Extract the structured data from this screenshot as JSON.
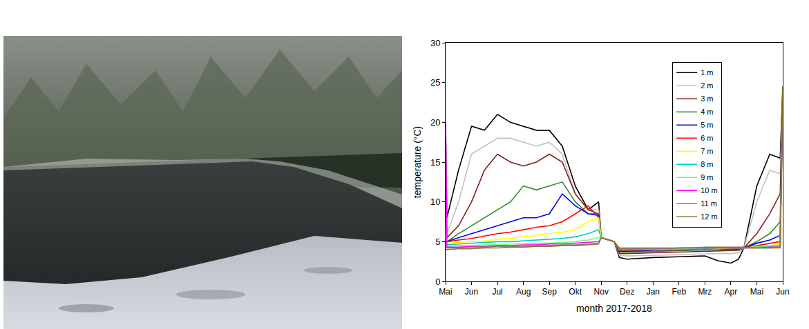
{
  "chart_data": {
    "type": "line",
    "x_label": "month 2017-2018",
    "y_label": "temperature (°C)",
    "x": [
      0,
      0.05,
      0.5,
      1,
      1.5,
      2,
      2.5,
      3,
      3.5,
      4,
      4.5,
      5,
      5.5,
      5.9,
      6,
      6.5,
      6.7,
      7,
      8,
      9,
      10,
      10.5,
      11,
      11.3,
      11.5,
      12,
      12.5,
      12.9,
      13
    ],
    "xlim": [
      0,
      13
    ],
    "xticks": [
      {
        "value": 0,
        "label": "Mai"
      },
      {
        "value": 1,
        "label": "Jun"
      },
      {
        "value": 2,
        "label": "Jul"
      },
      {
        "value": 3,
        "label": "Aug"
      },
      {
        "value": 4,
        "label": "Sep"
      },
      {
        "value": 5,
        "label": "Okt"
      },
      {
        "value": 6,
        "label": "Nov"
      },
      {
        "value": 7,
        "label": "Dez"
      },
      {
        "value": 8,
        "label": "Jan"
      },
      {
        "value": 9,
        "label": "Feb"
      },
      {
        "value": 10,
        "label": "Mrz"
      },
      {
        "value": 11,
        "label": "Apr"
      },
      {
        "value": 12,
        "label": "Mai"
      },
      {
        "value": 13,
        "label": "Jun"
      }
    ],
    "ylim": [
      0,
      30
    ],
    "yticks": [
      0,
      5,
      10,
      15,
      20,
      25,
      30
    ],
    "grid": false,
    "legend": "top right",
    "series": [
      {
        "name": "1 m",
        "color": "#000000",
        "values": [
          20,
          8,
          14,
          19.5,
          19,
          21,
          20,
          19.5,
          19,
          19,
          17,
          12,
          9,
          10,
          5.5,
          5,
          3,
          2.8,
          3.0,
          3.1,
          3.2,
          2.6,
          2.3,
          2.8,
          4.2,
          12,
          16,
          15.5,
          24.5
        ]
      },
      {
        "name": "2 m",
        "color": "#c0c0c0",
        "values": [
          19,
          6,
          10,
          16,
          17,
          18,
          18,
          17.5,
          17,
          17.5,
          16,
          11,
          9,
          9,
          5.5,
          5,
          3.3,
          3.2,
          3.3,
          3.4,
          3.5,
          3.5,
          3.5,
          3.6,
          4.2,
          10,
          14,
          13.5,
          24
        ]
      },
      {
        "name": "3 m",
        "color": "#8b1a1a",
        "values": [
          15,
          5.5,
          7,
          10,
          14,
          16,
          15,
          14.5,
          15,
          16,
          15,
          11,
          9,
          8.5,
          5.5,
          5,
          3.5,
          3.5,
          3.6,
          3.7,
          3.8,
          3.8,
          3.9,
          3.9,
          4.2,
          6,
          8.5,
          11,
          24
        ]
      },
      {
        "name": "4 m",
        "color": "#2e8b2e",
        "values": [
          5,
          5,
          6,
          7,
          8,
          9,
          10,
          12,
          11.5,
          12,
          12.5,
          10,
          8.5,
          8.5,
          5.5,
          5,
          3.7,
          3.7,
          3.8,
          3.9,
          4.0,
          4.0,
          4.0,
          4.0,
          4.2,
          5,
          6,
          7.5,
          24
        ]
      },
      {
        "name": "5 m",
        "color": "#0000ff",
        "values": [
          5,
          5,
          5.5,
          6,
          6.5,
          7,
          7.5,
          8,
          8,
          8.5,
          11,
          9.5,
          8.5,
          8.3,
          5.5,
          5,
          3.8,
          3.8,
          3.9,
          4.0,
          4.0,
          4.1,
          4.1,
          4.1,
          4.2,
          4.8,
          5.2,
          5.8,
          24
        ]
      },
      {
        "name": "6 m",
        "color": "#ff0000",
        "values": [
          5,
          5,
          5.2,
          5.4,
          5.7,
          6,
          6.2,
          6.5,
          6.8,
          7,
          7.5,
          8.5,
          9.5,
          8,
          5.5,
          5,
          3.9,
          3.9,
          4.0,
          4.0,
          4.1,
          4.1,
          4.2,
          4.2,
          4.2,
          4.5,
          4.8,
          5,
          23
        ]
      },
      {
        "name": "7 m",
        "color": "#ffff00",
        "values": [
          4.8,
          4.8,
          4.9,
          5,
          5.1,
          5.3,
          5.4,
          5.6,
          5.8,
          6,
          6.2,
          6.5,
          7.5,
          8,
          5.5,
          5,
          4.0,
          4.0,
          4.0,
          4.1,
          4.1,
          4.1,
          4.2,
          4.2,
          4.2,
          4.4,
          4.5,
          4.7,
          22
        ]
      },
      {
        "name": "8 m",
        "color": "#00c8c8",
        "values": [
          4.6,
          4.6,
          4.7,
          4.8,
          4.9,
          5,
          5,
          5.1,
          5.2,
          5.3,
          5.4,
          5.6,
          6,
          6.5,
          5.5,
          5,
          4.0,
          4.0,
          4.1,
          4.1,
          4.1,
          4.2,
          4.2,
          4.2,
          4.2,
          4.3,
          4.4,
          4.5,
          22
        ]
      },
      {
        "name": "9 m",
        "color": "#66ff66",
        "values": [
          4.5,
          4.4,
          4.5,
          4.5,
          4.6,
          4.6,
          4.7,
          4.7,
          4.8,
          4.8,
          4.9,
          5,
          5.2,
          5.5,
          5.5,
          5,
          4.1,
          4.1,
          4.1,
          4.1,
          4.2,
          4.2,
          4.2,
          4.2,
          4.2,
          4.3,
          4.3,
          4.4,
          21
        ]
      },
      {
        "name": "10 m",
        "color": "#ff00ff",
        "values": [
          20,
          4.3,
          4.3,
          4.4,
          4.4,
          4.5,
          4.5,
          4.6,
          4.6,
          4.7,
          4.7,
          4.8,
          4.9,
          5,
          5.5,
          5,
          4.1,
          4.1,
          4.1,
          4.2,
          4.2,
          4.2,
          4.2,
          4.2,
          4.2,
          4.2,
          4.3,
          4.3,
          22.5
        ]
      },
      {
        "name": "11 m",
        "color": "#808080",
        "values": [
          4.2,
          4.2,
          4.2,
          4.3,
          4.3,
          4.4,
          4.4,
          4.4,
          4.5,
          4.5,
          4.6,
          4.6,
          4.7,
          4.8,
          5.5,
          5,
          4.1,
          4.1,
          4.1,
          4.2,
          4.2,
          4.2,
          4.2,
          4.2,
          4.2,
          4.2,
          4.2,
          4.3,
          24
        ]
      },
      {
        "name": "12 m",
        "color": "#8b7d2b",
        "values": [
          4.0,
          4.0,
          4.1,
          4.1,
          4.2,
          4.2,
          4.3,
          4.3,
          4.4,
          4.4,
          4.5,
          4.5,
          4.6,
          4.7,
          5.5,
          5,
          4.2,
          4.2,
          4.2,
          4.2,
          4.3,
          4.3,
          4.3,
          4.3,
          4.3,
          4.2,
          4.2,
          4.2,
          24.5
        ]
      }
    ]
  }
}
